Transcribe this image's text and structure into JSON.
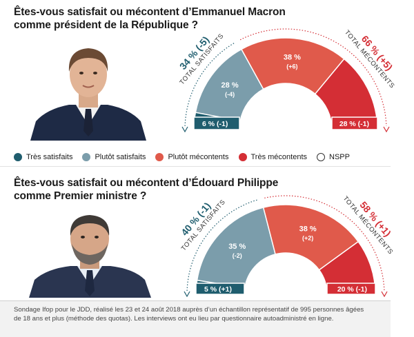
{
  "colors": {
    "tres_satisfaits": "#1f5d6e",
    "plutot_satisfaits": "#7b9dab",
    "plutot_mecontents": "#e05a4b",
    "tres_mecontents": "#d42e35",
    "nspp": "#ffffff"
  },
  "legend": {
    "tres_satisfaits": "Très satisfaits",
    "plutot_satisfaits": "Plutôt satisfaits",
    "plutot_mecontents": "Plutôt mécontents",
    "tres_mecontents": "Très mécontents",
    "nspp": "NSPP"
  },
  "q1": {
    "title_line1": "Êtes-vous satisfait ou mécontent d’Emmanuel Macron",
    "title_line2": "comme président de la République ?",
    "portrait_icon": "emmanuel-macron-portrait"
  },
  "q2": {
    "title_line1": "Êtes-vous satisfait ou mécontent d’Édouard Philippe",
    "title_line2": "comme Premier ministre ?",
    "portrait_icon": "edouard-philippe-portrait"
  },
  "chart_data": [
    {
      "type": "pie",
      "subtype": "semicircle-donut",
      "series": [
        {
          "name": "Très satisfaits",
          "value": 6,
          "change": "(-1)"
        },
        {
          "name": "Plutôt satisfaits",
          "value": 28,
          "change": "(-4)"
        },
        {
          "name": "Plutôt mécontents",
          "value": 38,
          "change": "(+6)"
        },
        {
          "name": "Très mécontents",
          "value": 28,
          "change": "(-1)"
        }
      ],
      "total_satisfaits": {
        "label": "TOTAL SATISFAITS",
        "value": "34 %",
        "change": "(-5)"
      },
      "total_mecontents": {
        "label": "TOTAL MÉCONTENTS",
        "value": "66 %",
        "change": "(+5)"
      }
    },
    {
      "type": "pie",
      "subtype": "semicircle-donut",
      "series": [
        {
          "name": "Très satisfaits",
          "value": 5,
          "change": "(+1)"
        },
        {
          "name": "Plutôt satisfaits",
          "value": 35,
          "change": "(-2)"
        },
        {
          "name": "Plutôt mécontents",
          "value": 38,
          "change": "(+2)"
        },
        {
          "name": "Très mécontents",
          "value": 20,
          "change": "(-1)"
        }
      ],
      "total_satisfaits": {
        "label": "TOTAL SATISFAITS",
        "value": "40 %",
        "change": "(-1)"
      },
      "total_mecontents": {
        "label": "TOTAL MÉCONTENTS",
        "value": "58 %",
        "change": "(+1)"
      }
    }
  ],
  "footer": {
    "line1": "Sondage Ifop pour le JDD, réalisé les 23 et 24 août 2018 auprès d’un échantillon représentatif de 995 personnes âgées",
    "line2": "de 18 ans et plus (méthode des quotas). Les interviews ont eu lieu par questionnaire autoadministré en ligne."
  }
}
